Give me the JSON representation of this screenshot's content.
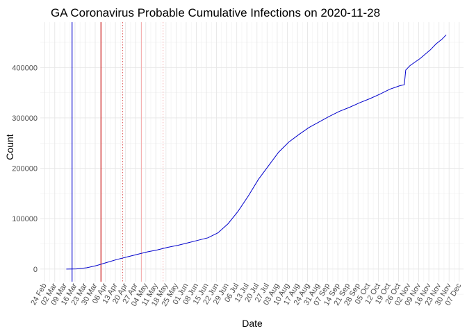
{
  "chart_data": {
    "type": "line",
    "title": "GA Coronavirus Probable Cumulative Infections on 2020-11-28",
    "xlabel": "Date",
    "ylabel": "Count",
    "xlim": [
      "2020-02-21",
      "2020-12-10"
    ],
    "ylim": [
      -25000,
      490000
    ],
    "y_ticks": [
      0,
      100000,
      200000,
      300000,
      400000
    ],
    "y_tick_labels": [
      "0",
      "100000",
      "200000",
      "300000",
      "400000"
    ],
    "x_ticks": [
      "2020-02-24",
      "2020-03-02",
      "2020-03-09",
      "2020-03-16",
      "2020-03-23",
      "2020-03-30",
      "2020-04-06",
      "2020-04-13",
      "2020-04-20",
      "2020-04-27",
      "2020-05-04",
      "2020-05-11",
      "2020-05-18",
      "2020-05-25",
      "2020-06-01",
      "2020-06-08",
      "2020-06-15",
      "2020-06-22",
      "2020-06-29",
      "2020-07-06",
      "2020-07-13",
      "2020-07-20",
      "2020-07-27",
      "2020-08-03",
      "2020-08-10",
      "2020-08-17",
      "2020-08-24",
      "2020-08-31",
      "2020-09-07",
      "2020-09-14",
      "2020-09-21",
      "2020-09-28",
      "2020-10-05",
      "2020-10-12",
      "2020-10-19",
      "2020-10-26",
      "2020-11-02",
      "2020-11-09",
      "2020-11-16",
      "2020-11-23",
      "2020-11-30",
      "2020-12-07"
    ],
    "x_tick_labels": [
      "24 Feb",
      "02 Mar",
      "09 Mar",
      "16 Mar",
      "23 Mar",
      "30 Mar",
      "06 Apr",
      "13 Apr",
      "20 Apr",
      "27 Apr",
      "04 May",
      "11 May",
      "18 May",
      "25 May",
      "01 Jun",
      "08 Jun",
      "15 Jun",
      "22 Jun",
      "29 Jun",
      "06 Jul",
      "13 Jul",
      "20 Jul",
      "27 Jul",
      "03 Aug",
      "10 Aug",
      "17 Aug",
      "24 Aug",
      "31 Aug",
      "07 Sep",
      "14 Sep",
      "21 Sep",
      "28 Sep",
      "05 Oct",
      "12 Oct",
      "19 Oct",
      "26 Oct",
      "02 Nov",
      "09 Nov",
      "16 Nov",
      "23 Nov",
      "30 Nov",
      "07 Dec"
    ],
    "grid": true,
    "vlines": [
      {
        "date": "2020-03-14",
        "color": "#0000cc",
        "style": "solid"
      },
      {
        "date": "2020-04-03",
        "color": "#cc0000",
        "style": "solid"
      },
      {
        "date": "2020-04-18",
        "color": "#e06666",
        "style": "dotted"
      },
      {
        "date": "2020-05-01",
        "color": "#f4b0b0",
        "style": "solid"
      },
      {
        "date": "2020-05-16",
        "color": "#f4b0b0",
        "style": "dotted"
      }
    ],
    "series": [
      {
        "color": "#0000cc",
        "x": [
          "2020-03-10",
          "2020-03-17",
          "2020-03-24",
          "2020-03-31",
          "2020-04-07",
          "2020-04-14",
          "2020-04-21",
          "2020-04-28",
          "2020-05-05",
          "2020-05-12",
          "2020-05-19",
          "2020-05-26",
          "2020-06-02",
          "2020-06-09",
          "2020-06-16",
          "2020-06-23",
          "2020-06-30",
          "2020-07-07",
          "2020-07-14",
          "2020-07-21",
          "2020-07-28",
          "2020-08-04",
          "2020-08-11",
          "2020-08-18",
          "2020-08-25",
          "2020-09-01",
          "2020-09-08",
          "2020-09-15",
          "2020-09-22",
          "2020-09-29",
          "2020-10-06",
          "2020-10-13",
          "2020-10-20",
          "2020-10-27",
          "2020-10-30",
          "2020-10-31",
          "2020-11-03",
          "2020-11-10",
          "2020-11-17",
          "2020-11-21",
          "2020-11-25",
          "2020-11-28"
        ],
        "values": [
          0,
          300,
          2500,
          7000,
          13000,
          19000,
          24000,
          29000,
          34000,
          38000,
          43000,
          47000,
          52000,
          57000,
          62000,
          72000,
          90000,
          115000,
          145000,
          178000,
          205000,
          232000,
          252000,
          267000,
          281000,
          292000,
          303000,
          313000,
          321000,
          330000,
          338000,
          347000,
          357000,
          364000,
          366000,
          395000,
          404000,
          418000,
          435000,
          447000,
          456000,
          465000
        ]
      }
    ]
  }
}
